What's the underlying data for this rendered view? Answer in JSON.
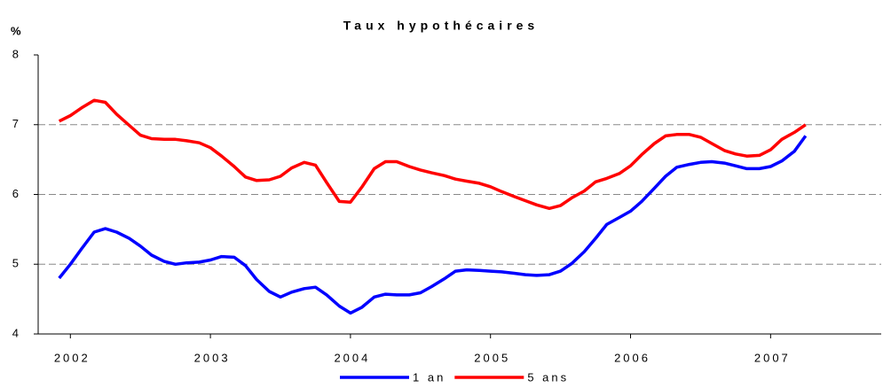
{
  "chart_data": {
    "type": "line",
    "title": "Taux hypothécaires",
    "y_unit": "%",
    "x": [
      2001.92,
      2002.0,
      2002.08,
      2002.17,
      2002.25,
      2002.33,
      2002.42,
      2002.5,
      2002.58,
      2002.67,
      2002.75,
      2002.83,
      2002.92,
      2003.0,
      2003.08,
      2003.17,
      2003.25,
      2003.33,
      2003.42,
      2003.5,
      2003.58,
      2003.67,
      2003.75,
      2003.83,
      2003.92,
      2004.0,
      2004.08,
      2004.17,
      2004.25,
      2004.33,
      2004.42,
      2004.5,
      2004.58,
      2004.67,
      2004.75,
      2004.83,
      2004.92,
      2005.0,
      2005.08,
      2005.17,
      2005.25,
      2005.33,
      2005.42,
      2005.5,
      2005.58,
      2005.67,
      2005.75,
      2005.83,
      2005.92,
      2006.0,
      2006.08,
      2006.17,
      2006.25,
      2006.33,
      2006.42,
      2006.5,
      2006.58,
      2006.67,
      2006.75,
      2006.83,
      2006.92,
      2007.0,
      2007.08,
      2007.17,
      2007.25
    ],
    "series": [
      {
        "name": "1 an",
        "color": "#0000ff",
        "values": [
          4.8,
          5.0,
          5.22,
          5.46,
          5.51,
          5.46,
          5.37,
          5.26,
          5.13,
          5.04,
          5.0,
          5.02,
          5.03,
          5.06,
          5.11,
          5.1,
          4.98,
          4.78,
          4.61,
          4.53,
          4.6,
          4.65,
          4.67,
          4.56,
          4.4,
          4.3,
          4.38,
          4.53,
          4.57,
          4.56,
          4.56,
          4.59,
          4.68,
          4.79,
          4.9,
          4.92,
          4.91,
          4.9,
          4.89,
          4.87,
          4.85,
          4.84,
          4.85,
          4.9,
          5.01,
          5.18,
          5.37,
          5.57,
          5.67,
          5.76,
          5.9,
          6.09,
          6.26,
          6.39,
          6.43,
          6.46,
          6.47,
          6.45,
          6.41,
          6.37,
          6.37,
          6.4,
          6.48,
          6.62,
          6.84
        ]
      },
      {
        "name": "5 ans",
        "color": "#ff0000",
        "values": [
          7.05,
          7.13,
          7.24,
          7.35,
          7.32,
          7.15,
          6.99,
          6.85,
          6.8,
          6.79,
          6.79,
          6.77,
          6.74,
          6.67,
          6.55,
          6.4,
          6.25,
          6.2,
          6.21,
          6.26,
          6.38,
          6.46,
          6.42,
          6.17,
          5.9,
          5.89,
          6.1,
          6.37,
          6.47,
          6.47,
          6.4,
          6.35,
          6.31,
          6.27,
          6.22,
          6.19,
          6.16,
          6.11,
          6.04,
          5.97,
          5.91,
          5.85,
          5.8,
          5.84,
          5.95,
          6.05,
          6.18,
          6.23,
          6.3,
          6.41,
          6.57,
          6.73,
          6.84,
          6.86,
          6.86,
          6.82,
          6.73,
          6.63,
          6.58,
          6.55,
          6.56,
          6.64,
          6.79,
          6.89,
          7.0
        ]
      }
    ],
    "xlim": [
      2001.77,
      2007.79
    ],
    "xticks": [
      2002,
      2003,
      2004,
      2005,
      2006,
      2007
    ],
    "ylim": [
      4,
      8
    ],
    "yticks": [
      4,
      5,
      6,
      7,
      8
    ],
    "grid": true,
    "legend": "bottom"
  }
}
